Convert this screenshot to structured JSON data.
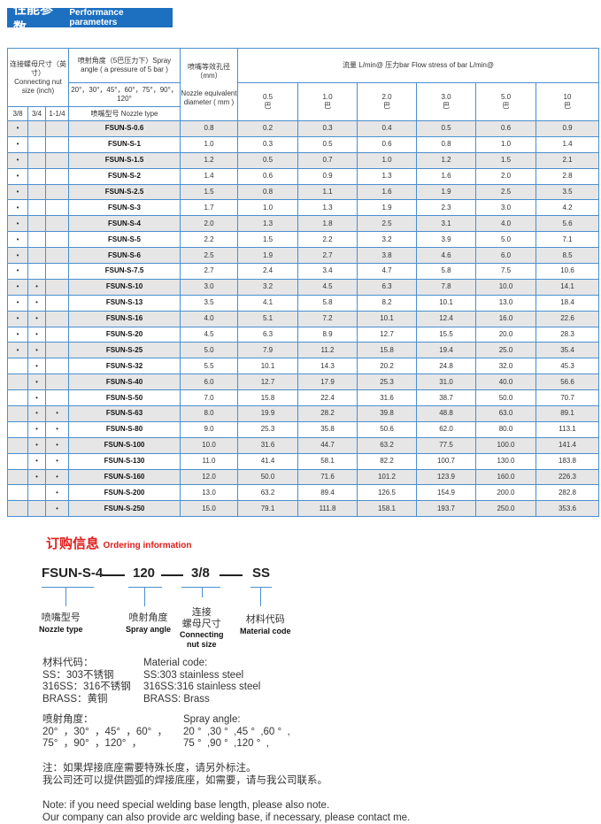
{
  "header": {
    "title_cn": "性能参数",
    "title_en": "Performance parameters"
  },
  "table": {
    "h_nut_cn": "连接螺母尺寸（英寸）",
    "h_nut_en": "Connecting nut size (inch)",
    "h_angle": "喷射角度（5巴压力下）Spray angle ( a pressure of 5 bar )",
    "h_angle_values": "20°，30°，45°，60°，75°，90°，120°",
    "h_diam_cn": "喷嘴等效孔径（mm）",
    "h_diam_en": "Nozzle equivalent diameter ( mm )",
    "h_flow": "流量 L/min@  压力bar    Flow stress of bar L/min@",
    "h_sizes": [
      "3/8",
      "3/4",
      "1-1/4"
    ],
    "h_type": "喷嘴型号  Nozzle type",
    "pressures": [
      "0.5\n巴",
      "1.0\n巴",
      "2.0\n巴",
      "3.0\n巴",
      "5.0\n巴",
      "10\n巴"
    ],
    "dot": "•",
    "rows": [
      {
        "s": [
          1,
          0,
          0
        ],
        "type": "FSUN-S-0.6",
        "d": "0.8",
        "f": [
          "0.2",
          "0.3",
          "0.4",
          "0.5",
          "0.6",
          "0.9"
        ]
      },
      {
        "s": [
          1,
          0,
          0
        ],
        "type": "FSUN-S-1",
        "d": "1.0",
        "f": [
          "0.3",
          "0.5",
          "0.6",
          "0.8",
          "1.0",
          "1.4"
        ]
      },
      {
        "s": [
          1,
          0,
          0
        ],
        "type": "FSUN-S-1.5",
        "d": "1.2",
        "f": [
          "0.5",
          "0.7",
          "1.0",
          "1.2",
          "1.5",
          "2.1"
        ]
      },
      {
        "s": [
          1,
          0,
          0
        ],
        "type": "FSUN-S-2",
        "d": "1.4",
        "f": [
          "0.6",
          "0.9",
          "1.3",
          "1.6",
          "2.0",
          "2.8"
        ]
      },
      {
        "s": [
          1,
          0,
          0
        ],
        "type": "FSUN-S-2.5",
        "d": "1.5",
        "f": [
          "0.8",
          "1.1",
          "1.6",
          "1.9",
          "2.5",
          "3.5"
        ]
      },
      {
        "s": [
          1,
          0,
          0
        ],
        "type": "FSUN-S-3",
        "d": "1.7",
        "f": [
          "1.0",
          "1.3",
          "1.9",
          "2.3",
          "3.0",
          "4.2"
        ]
      },
      {
        "s": [
          1,
          0,
          0
        ],
        "type": "FSUN-S-4",
        "d": "2.0",
        "f": [
          "1.3",
          "1.8",
          "2.5",
          "3.1",
          "4.0",
          "5.6"
        ]
      },
      {
        "s": [
          1,
          0,
          0
        ],
        "type": "FSUN-S-5",
        "d": "2.2",
        "f": [
          "1.5",
          "2.2",
          "3.2",
          "3.9",
          "5.0",
          "7.1"
        ]
      },
      {
        "s": [
          1,
          0,
          0
        ],
        "type": "FSUN-S-6",
        "d": "2.5",
        "f": [
          "1.9",
          "2.7",
          "3.8",
          "4.6",
          "6.0",
          "8.5"
        ]
      },
      {
        "s": [
          1,
          0,
          0
        ],
        "type": "FSUN-S-7.5",
        "d": "2.7",
        "f": [
          "2.4",
          "3.4",
          "4.7",
          "5.8",
          "7.5",
          "10.6"
        ]
      },
      {
        "s": [
          1,
          1,
          0
        ],
        "type": "FSUN-S-10",
        "d": "3.0",
        "f": [
          "3.2",
          "4.5",
          "6.3",
          "7.8",
          "10.0",
          "14.1"
        ]
      },
      {
        "s": [
          1,
          1,
          0
        ],
        "type": "FSUN-S-13",
        "d": "3.5",
        "f": [
          "4.1",
          "5.8",
          "8.2",
          "10.1",
          "13.0",
          "18.4"
        ]
      },
      {
        "s": [
          1,
          1,
          0
        ],
        "type": "FSUN-S-16",
        "d": "4.0",
        "f": [
          "5.1",
          "7.2",
          "10.1",
          "12.4",
          "16.0",
          "22.6"
        ]
      },
      {
        "s": [
          1,
          1,
          0
        ],
        "type": "FSUN-S-20",
        "d": "4.5",
        "f": [
          "6.3",
          "8.9",
          "12.7",
          "15.5",
          "20.0",
          "28.3"
        ]
      },
      {
        "s": [
          1,
          1,
          0
        ],
        "type": "FSUN-S-25",
        "d": "5.0",
        "f": [
          "7.9",
          "11.2",
          "15.8",
          "19.4",
          "25.0",
          "35.4"
        ]
      },
      {
        "s": [
          0,
          1,
          0
        ],
        "type": "FSUN-S-32",
        "d": "5.5",
        "f": [
          "10.1",
          "14.3",
          "20.2",
          "24.8",
          "32.0",
          "45.3"
        ]
      },
      {
        "s": [
          0,
          1,
          0
        ],
        "type": "FSUN-S-40",
        "d": "6.0",
        "f": [
          "12.7",
          "17.9",
          "25.3",
          "31.0",
          "40.0",
          "56.6"
        ]
      },
      {
        "s": [
          0,
          1,
          0
        ],
        "type": "FSUN-S-50",
        "d": "7.0",
        "f": [
          "15.8",
          "22.4",
          "31.6",
          "38.7",
          "50.0",
          "70.7"
        ]
      },
      {
        "s": [
          0,
          1,
          1
        ],
        "type": "FSUN-S-63",
        "d": "8.0",
        "f": [
          "19.9",
          "28.2",
          "39.8",
          "48.8",
          "63.0",
          "89.1"
        ]
      },
      {
        "s": [
          0,
          1,
          1
        ],
        "type": "FSUN-S-80",
        "d": "9.0",
        "f": [
          "25.3",
          "35.8",
          "50.6",
          "62.0",
          "80.0",
          "113.1"
        ]
      },
      {
        "s": [
          0,
          1,
          1
        ],
        "type": "FSUN-S-100",
        "d": "10.0",
        "f": [
          "31.6",
          "44.7",
          "63.2",
          "77.5",
          "100.0",
          "141.4"
        ]
      },
      {
        "s": [
          0,
          1,
          1
        ],
        "type": "FSUN-S-130",
        "d": "11.0",
        "f": [
          "41.4",
          "58.1",
          "82.2",
          "100.7",
          "130.0",
          "183.8"
        ]
      },
      {
        "s": [
          0,
          1,
          1
        ],
        "type": "FSUN-S-160",
        "d": "12.0",
        "f": [
          "50.0",
          "71.6",
          "101.2",
          "123.9",
          "160.0",
          "226.3"
        ]
      },
      {
        "s": [
          0,
          0,
          1
        ],
        "type": "FSUN-S-200",
        "d": "13.0",
        "f": [
          "63.2",
          "89.4",
          "126.5",
          "154.9",
          "200.0",
          "282.8"
        ]
      },
      {
        "s": [
          0,
          0,
          1
        ],
        "type": "FSUN-S-250",
        "d": "15.0",
        "f": [
          "79.1",
          "111.8",
          "158.1",
          "193.7",
          "250.0",
          "353.6"
        ]
      }
    ]
  },
  "ordering": {
    "title_cn": "订购信息",
    "title_en": "Ordering information",
    "code": [
      "FSUN-S-4",
      "120",
      "3/8",
      "SS"
    ],
    "labels": [
      {
        "cn": "喷嘴型号",
        "en": "Nozzle type"
      },
      {
        "cn": "喷射角度",
        "en": "Spray angle"
      },
      {
        "cn": "连接\n螺母尺寸",
        "en": "Connecting\nnut size"
      },
      {
        "cn": "材料代码",
        "en": "Material code"
      }
    ],
    "material_cn": "材料代码：\nSS：303不锈钢\n316SS：316不锈钢\nBRASS：黄铜",
    "material_en": "Material code:\nSS:303 stainless steel\n316SS:316 stainless steel\nBRASS: Brass",
    "angle_cn": "喷射角度：\n20°  ，30°  ，45°  ，60°  ，\n75°  ，90°  ，120°  ，",
    "angle_en": "Spray angle:\n20 °  ,30 °  ,45 °  ,60 °  ,\n75 °  ,90 °  ,120 °  ,",
    "note_cn": "注：如果焊接底座需要特殊长度，请另外标注。\n我公司还可以提供圆弧的焊接底座，如需要，请与我公司联系。",
    "note_en": "Note: if you need special welding base length, please also note.\nOur company can also provide arc welding base, if necessary, please contact me."
  }
}
